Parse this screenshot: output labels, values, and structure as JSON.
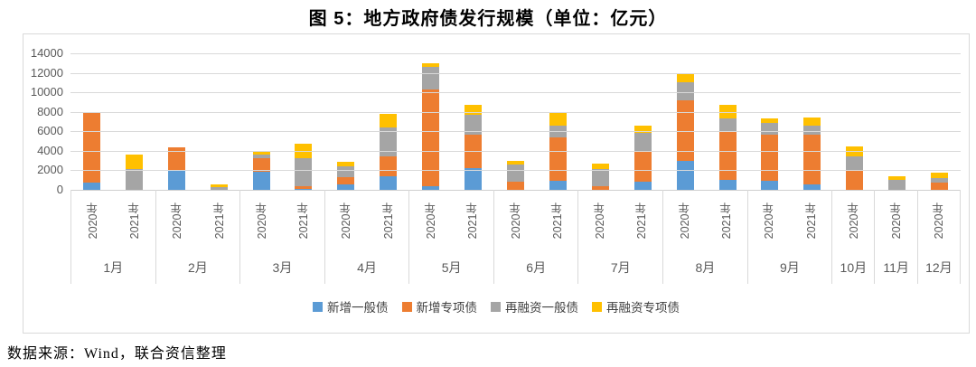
{
  "title": "图 5：地方政府债发行规模（单位：亿元）",
  "footer": {
    "source": "数据来源：Wind，联合资信整理"
  },
  "colors": {
    "gridline": "#D9D9D9",
    "axis_text": "#595959",
    "border": "#D9D9D9",
    "blue": "#5B9BD5",
    "orange": "#ED7D31",
    "gray": "#A5A5A5",
    "yellow": "#FFC000"
  },
  "chart_data": {
    "type": "bar",
    "stacked": true,
    "title": "图 5：地方政府债发行规模（单位：亿元）",
    "unit": "亿元",
    "ylim": [
      0,
      14000
    ],
    "y_ticks": [
      0,
      2000,
      4000,
      6000,
      8000,
      10000,
      12000,
      14000
    ],
    "grid": true,
    "legend_position": "bottom",
    "series": [
      {
        "name": "新增一般债",
        "color": "#5B9BD5"
      },
      {
        "name": "新增专项债",
        "color": "#ED7D31"
      },
      {
        "name": "再融资一般债",
        "color": "#A5A5A5"
      },
      {
        "name": "再融资专项债",
        "color": "#FFC000"
      }
    ],
    "groups": [
      {
        "month": "1月",
        "bars": [
          {
            "year": "2020年",
            "values": [
              700,
              7150,
              0,
              0
            ]
          },
          {
            "year": "2021年",
            "values": [
              0,
              0,
              2160,
              1470
            ]
          }
        ]
      },
      {
        "month": "2月",
        "bars": [
          {
            "year": "2020年",
            "values": [
              1950,
              2430,
              0,
              0
            ]
          },
          {
            "year": "2021年",
            "values": [
              0,
              0,
              280,
              280
            ]
          }
        ]
      },
      {
        "month": "3月",
        "bars": [
          {
            "year": "2020年",
            "values": [
              1860,
              1350,
              390,
              280
            ]
          },
          {
            "year": "2021年",
            "values": [
              60,
              300,
              2860,
              1550
            ]
          }
        ]
      },
      {
        "month": "4月",
        "bars": [
          {
            "year": "2020年",
            "values": [
              600,
              720,
              1050,
              540
            ]
          },
          {
            "year": "2021年",
            "values": [
              1410,
              1980,
              3030,
              1330
            ]
          }
        ]
      },
      {
        "month": "5月",
        "bars": [
          {
            "year": "2020年",
            "values": [
              370,
              9950,
              2310,
              360
            ]
          },
          {
            "year": "2021年",
            "values": [
              2220,
              3480,
              2010,
              1020
            ]
          }
        ]
      },
      {
        "month": "6月",
        "bars": [
          {
            "year": "2020年",
            "values": [
              0,
              800,
              1780,
              360
            ]
          },
          {
            "year": "2021年",
            "values": [
              950,
              4390,
              1230,
              1350
            ]
          }
        ]
      },
      {
        "month": "7月",
        "bars": [
          {
            "year": "2020年",
            "values": [
              0,
              370,
              1730,
              630
            ]
          },
          {
            "year": "2021年",
            "values": [
              800,
              3220,
              1830,
              720
            ]
          }
        ]
      },
      {
        "month": "8月",
        "bars": [
          {
            "year": "2020年",
            "values": [
              2970,
              6180,
              1860,
              870
            ]
          },
          {
            "year": "2021年",
            "values": [
              1050,
              4890,
              1380,
              1440
            ]
          }
        ]
      },
      {
        "month": "9月",
        "bars": [
          {
            "year": "2020年",
            "values": [
              950,
              4690,
              1200,
              450
            ]
          },
          {
            "year": "2021年",
            "values": [
              560,
              5110,
              960,
              780
            ]
          }
        ]
      },
      {
        "month": "10月",
        "bars": [
          {
            "year": "2020年",
            "values": [
              0,
              2000,
              1420,
              1020
            ]
          }
        ]
      },
      {
        "month": "11月",
        "bars": [
          {
            "year": "2020年",
            "values": [
              0,
              0,
              990,
              410
            ]
          }
        ]
      },
      {
        "month": "12月",
        "bars": [
          {
            "year": "2020年",
            "values": [
              0,
              700,
              550,
              500
            ]
          }
        ]
      }
    ]
  }
}
